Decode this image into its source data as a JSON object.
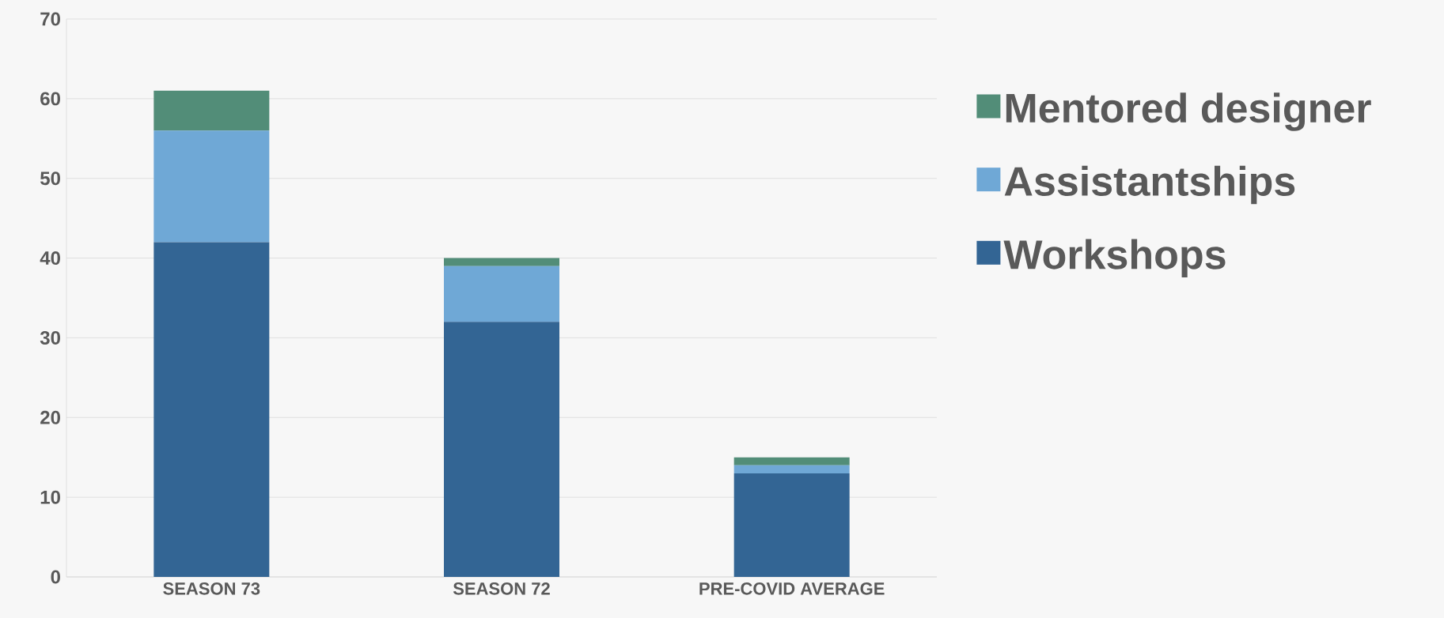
{
  "chart_data": {
    "type": "bar",
    "stacked": true,
    "categories": [
      "SEASON 73",
      "SEASON 72",
      "PRE-COVID AVERAGE"
    ],
    "series": [
      {
        "name": "Workshops",
        "color": "#336594",
        "values": [
          42,
          32,
          13
        ]
      },
      {
        "name": "Assistantships",
        "color": "#6fa8d6",
        "values": [
          14,
          7,
          1
        ]
      },
      {
        "name": "Mentored designer",
        "color": "#528d78",
        "values": [
          5,
          1,
          1
        ]
      }
    ],
    "ylim": [
      0,
      70
    ],
    "yticks": [
      0,
      10,
      20,
      30,
      40,
      50,
      60,
      70
    ],
    "grid": "y",
    "legend": "right"
  }
}
